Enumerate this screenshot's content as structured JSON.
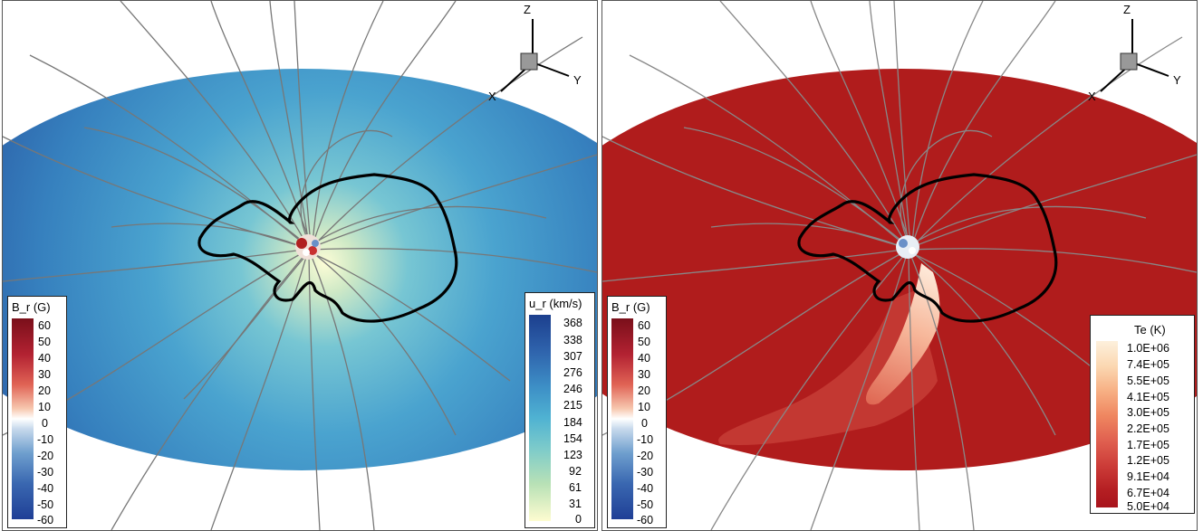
{
  "left_panel": {
    "colorbar_br": {
      "title": "B_r (G)",
      "labels": [
        "60",
        "50",
        "40",
        "30",
        "20",
        "10",
        "0",
        "-10",
        "-20",
        "-30",
        "-40",
        "-50",
        "-60"
      ]
    },
    "colorbar_ur": {
      "title": "u_r (km/s)",
      "labels": [
        "368",
        "338",
        "307",
        "276",
        "246",
        "215",
        "184",
        "154",
        "123",
        "92",
        "61",
        "31",
        "0"
      ]
    },
    "axes_triad": {
      "z": "Z",
      "x": "X",
      "y": "Y"
    }
  },
  "right_panel": {
    "colorbar_br": {
      "title": "B_r (G)",
      "labels": [
        "60",
        "50",
        "40",
        "30",
        "20",
        "10",
        "0",
        "-10",
        "-20",
        "-30",
        "-40",
        "-50",
        "-60"
      ]
    },
    "colorbar_te": {
      "title": "Te (K)",
      "labels": [
        "1.0E+06",
        "7.4E+05",
        "5.5E+05",
        "4.1E+05",
        "3.0E+05",
        "2.2E+05",
        "1.7E+05",
        "1.2E+05",
        "9.1E+04",
        "6.7E+04",
        "5.0E+04"
      ]
    },
    "axes_triad": {
      "z": "Z",
      "x": "X",
      "y": "Y"
    }
  },
  "colors": {
    "disk_blue_outer": "#2f66ad",
    "disk_blue_mid": "#4aa6cf",
    "disk_center": "#fbfbd2",
    "disk_red": "#b01c1c",
    "streamer": "#f4b08c",
    "field_line": "#7a7a7a",
    "neutral_line": "#000000"
  }
}
